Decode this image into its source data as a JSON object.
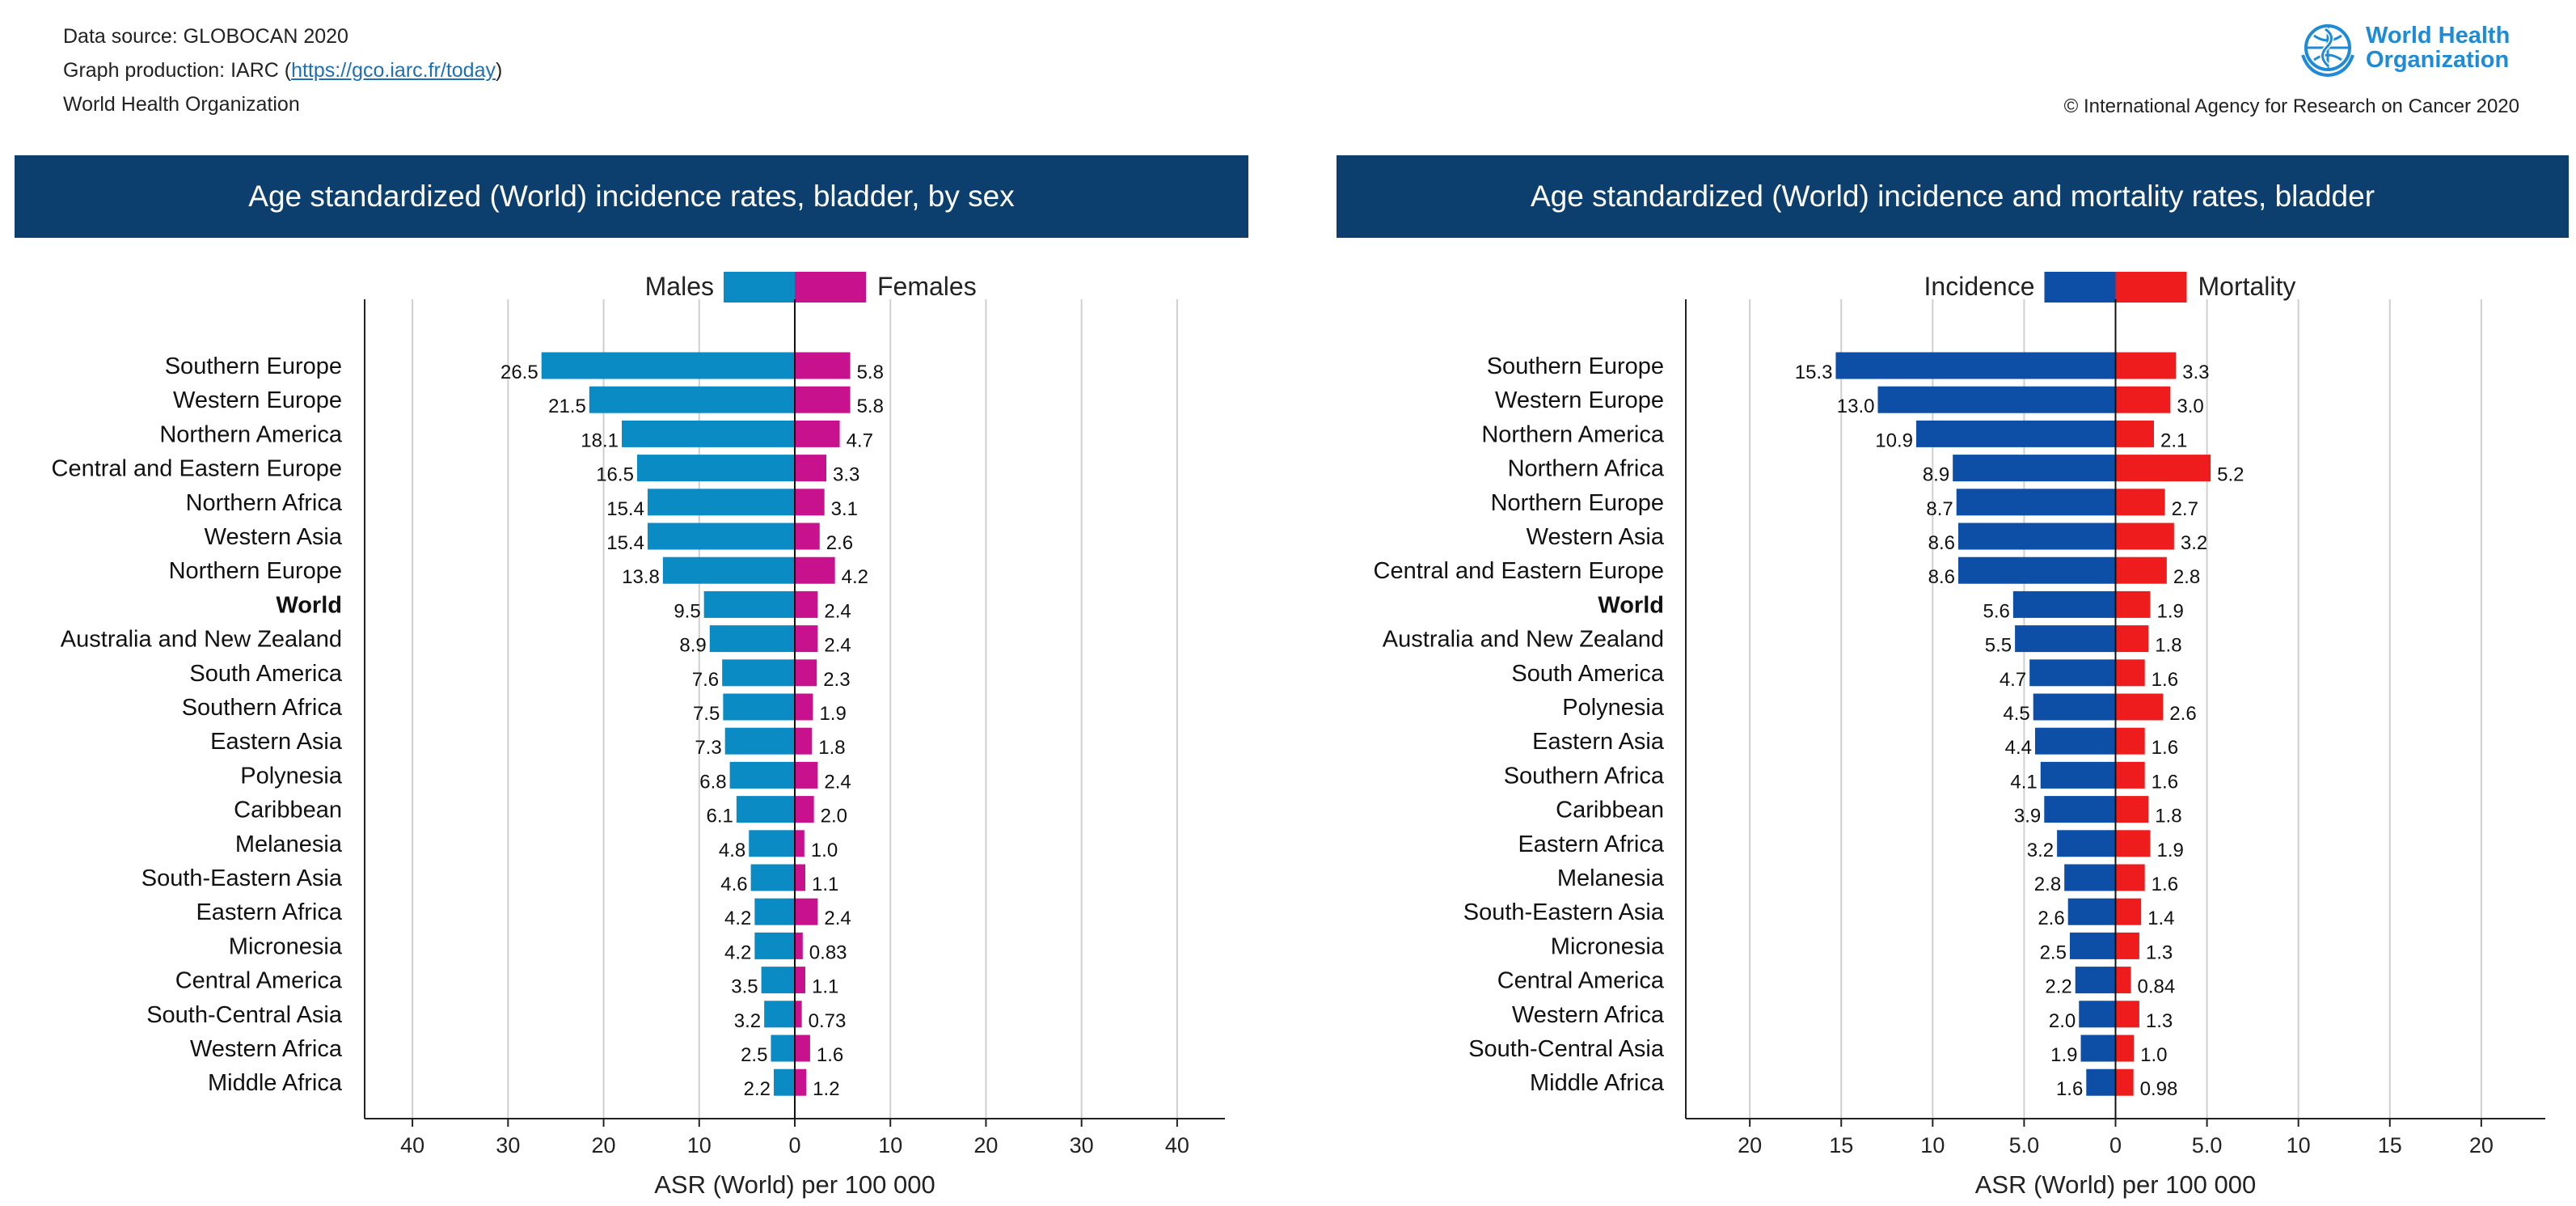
{
  "header": {
    "source": "Data source: GLOBOCAN 2020",
    "production_prefix": "Graph production: IARC (",
    "production_link": "https://gco.iarc.fr/today",
    "production_suffix": ")",
    "org": "World Health Organization"
  },
  "logo": {
    "name": "World Health\nOrganization",
    "copyright": "© International Agency for Research on Cancer 2020"
  },
  "chart_data": [
    {
      "type": "bar",
      "orientation": "horizontal-diverging",
      "title": "Age standardized (World) incidence rates, bladder, by sex",
      "xlabel": "ASR (World) per 100 000",
      "xlim": [
        -45,
        45
      ],
      "ticks": [
        -40,
        -30,
        -20,
        -10,
        0,
        10,
        20,
        30,
        40
      ],
      "tick_labels": [
        "40",
        "30",
        "20",
        "10",
        "0",
        "10",
        "20",
        "30",
        "40"
      ],
      "legend": {
        "left": "Males",
        "right": "Females"
      },
      "colors": {
        "left": "#0a8bc3",
        "right": "#c8118c"
      },
      "categories": [
        "Southern Europe",
        "Western Europe",
        "Northern America",
        "Central and Eastern Europe",
        "Northern Africa",
        "Western Asia",
        "Northern Europe",
        "World",
        "Australia and New Zealand",
        "South America",
        "Southern Africa",
        "Eastern Asia",
        "Polynesia",
        "Caribbean",
        "Melanesia",
        "South-Eastern Asia",
        "Eastern Africa",
        "Micronesia",
        "Central America",
        "South-Central Asia",
        "Western Africa",
        "Middle Africa"
      ],
      "bold": [
        "World"
      ],
      "series": [
        {
          "name": "Males",
          "values": [
            26.5,
            21.5,
            18.1,
            16.5,
            15.4,
            15.4,
            13.8,
            9.5,
            8.9,
            7.6,
            7.5,
            7.3,
            6.8,
            6.1,
            4.8,
            4.6,
            4.2,
            4.2,
            3.5,
            3.2,
            2.5,
            2.2
          ],
          "labels": [
            "26.5",
            "21.5",
            "18.1",
            "16.5",
            "15.4",
            "15.4",
            "13.8",
            "9.5",
            "8.9",
            "7.6",
            "7.5",
            "7.3",
            "6.8",
            "6.1",
            "4.8",
            "4.6",
            "4.2",
            "4.2",
            "3.5",
            "3.2",
            "2.5",
            "2.2"
          ]
        },
        {
          "name": "Females",
          "values": [
            5.8,
            5.8,
            4.7,
            3.3,
            3.1,
            2.6,
            4.2,
            2.4,
            2.4,
            2.3,
            1.9,
            1.8,
            2.4,
            2.0,
            1.0,
            1.1,
            2.4,
            0.83,
            1.1,
            0.73,
            1.6,
            1.2
          ],
          "labels": [
            "5.8",
            "5.8",
            "4.7",
            "3.3",
            "3.1",
            "2.6",
            "4.2",
            "2.4",
            "2.4",
            "2.3",
            "1.9",
            "1.8",
            "2.4",
            "2.0",
            "1.0",
            "1.1",
            "2.4",
            "0.83",
            "1.1",
            "0.73",
            "1.6",
            "1.2"
          ]
        }
      ]
    },
    {
      "type": "bar",
      "orientation": "horizontal-diverging",
      "title": "Age standardized (World) incidence and mortality rates, bladder",
      "xlabel": "ASR (World) per 100 000",
      "xlim": [
        -23.5,
        23.5
      ],
      "ticks": [
        -20,
        -15,
        -10,
        -5,
        0,
        5,
        10,
        15,
        20
      ],
      "tick_labels": [
        "20",
        "15",
        "10",
        "5.0",
        "0",
        "5.0",
        "10",
        "15",
        "20"
      ],
      "legend": {
        "left": "Incidence",
        "right": "Mortality"
      },
      "colors": {
        "left": "#0d4ea6",
        "right": "#ee1c1c"
      },
      "categories": [
        "Southern Europe",
        "Western Europe",
        "Northern America",
        "Northern Africa",
        "Northern Europe",
        "Western Asia",
        "Central and Eastern Europe",
        "World",
        "Australia and New Zealand",
        "South America",
        "Polynesia",
        "Eastern Asia",
        "Southern Africa",
        "Caribbean",
        "Eastern Africa",
        "Melanesia",
        "South-Eastern Asia",
        "Micronesia",
        "Central America",
        "Western Africa",
        "South-Central Asia",
        "Middle Africa"
      ],
      "bold": [
        "World"
      ],
      "series": [
        {
          "name": "Incidence",
          "values": [
            15.3,
            13.0,
            10.9,
            8.9,
            8.7,
            8.6,
            8.6,
            5.6,
            5.5,
            4.7,
            4.5,
            4.4,
            4.1,
            3.9,
            3.2,
            2.8,
            2.6,
            2.5,
            2.2,
            2.0,
            1.9,
            1.6
          ],
          "labels": [
            "15.3",
            "13.0",
            "10.9",
            "8.9",
            "8.7",
            "8.6",
            "8.6",
            "5.6",
            "5.5",
            "4.7",
            "4.5",
            "4.4",
            "4.1",
            "3.9",
            "3.2",
            "2.8",
            "2.6",
            "2.5",
            "2.2",
            "2.0",
            "1.9",
            "1.6"
          ]
        },
        {
          "name": "Mortality",
          "values": [
            3.3,
            3.0,
            2.1,
            5.2,
            2.7,
            3.2,
            2.8,
            1.9,
            1.8,
            1.6,
            2.6,
            1.6,
            1.6,
            1.8,
            1.9,
            1.6,
            1.4,
            1.3,
            0.84,
            1.3,
            1.0,
            0.98
          ],
          "labels": [
            "3.3",
            "3.0",
            "2.1",
            "5.2",
            "2.7",
            "3.2",
            "2.8",
            "1.9",
            "1.8",
            "1.6",
            "2.6",
            "1.6",
            "1.6",
            "1.8",
            "1.9",
            "1.6",
            "1.4",
            "1.3",
            "0.84",
            "1.3",
            "1.0",
            "0.98"
          ]
        }
      ]
    }
  ]
}
